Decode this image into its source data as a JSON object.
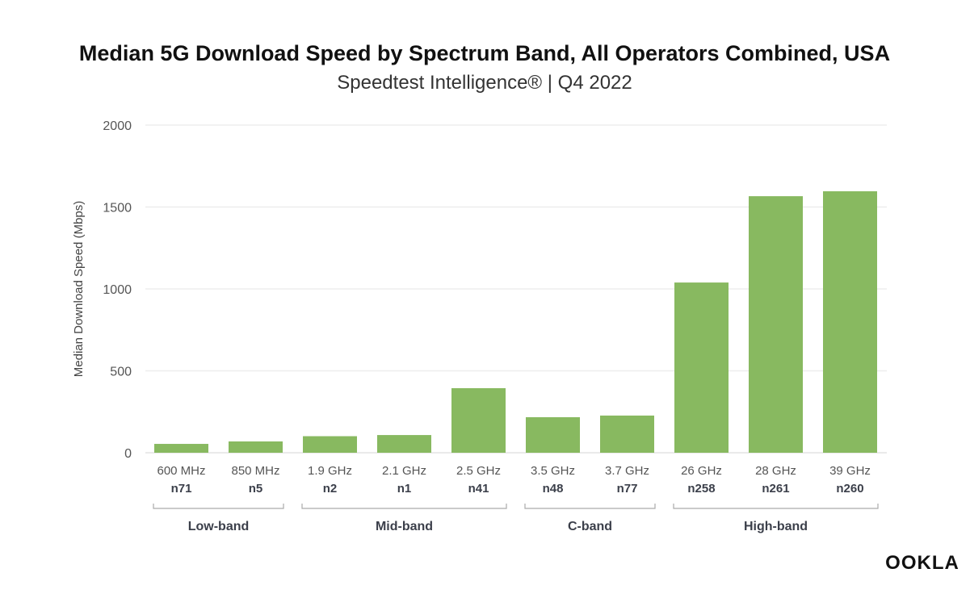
{
  "chart_data": {
    "type": "bar",
    "title": "Median 5G Download Speed by Spectrum Band, All Operators Combined, USA",
    "subtitle": "Speedtest Intelligence® | Q4 2022",
    "ylabel": "Median Download Speed (Mbps)",
    "xlabel": "",
    "ylim": [
      0,
      2000
    ],
    "yticks": [
      0,
      500,
      1000,
      1500,
      2000
    ],
    "grid": true,
    "bar_color": "#88b960",
    "categories": [
      "600 MHz",
      "850 MHz",
      "1.9 GHz",
      "2.1 GHz",
      "2.5 GHz",
      "3.5 GHz",
      "3.7 GHz",
      "26 GHz",
      "28 GHz",
      "39 GHz"
    ],
    "band_ids": [
      "n71",
      "n5",
      "n2",
      "n1",
      "n41",
      "n48",
      "n77",
      "n258",
      "n261",
      "n260"
    ],
    "values": [
      54,
      69,
      101,
      108,
      394,
      217,
      227,
      1039,
      1566,
      1596
    ],
    "groups": [
      {
        "label": "Low-band",
        "start": 0,
        "end": 1
      },
      {
        "label": "Mid-band",
        "start": 2,
        "end": 4
      },
      {
        "label": "C-band",
        "start": 5,
        "end": 6
      },
      {
        "label": "High-band",
        "start": 7,
        "end": 9
      }
    ]
  },
  "logo": "OOKLA"
}
